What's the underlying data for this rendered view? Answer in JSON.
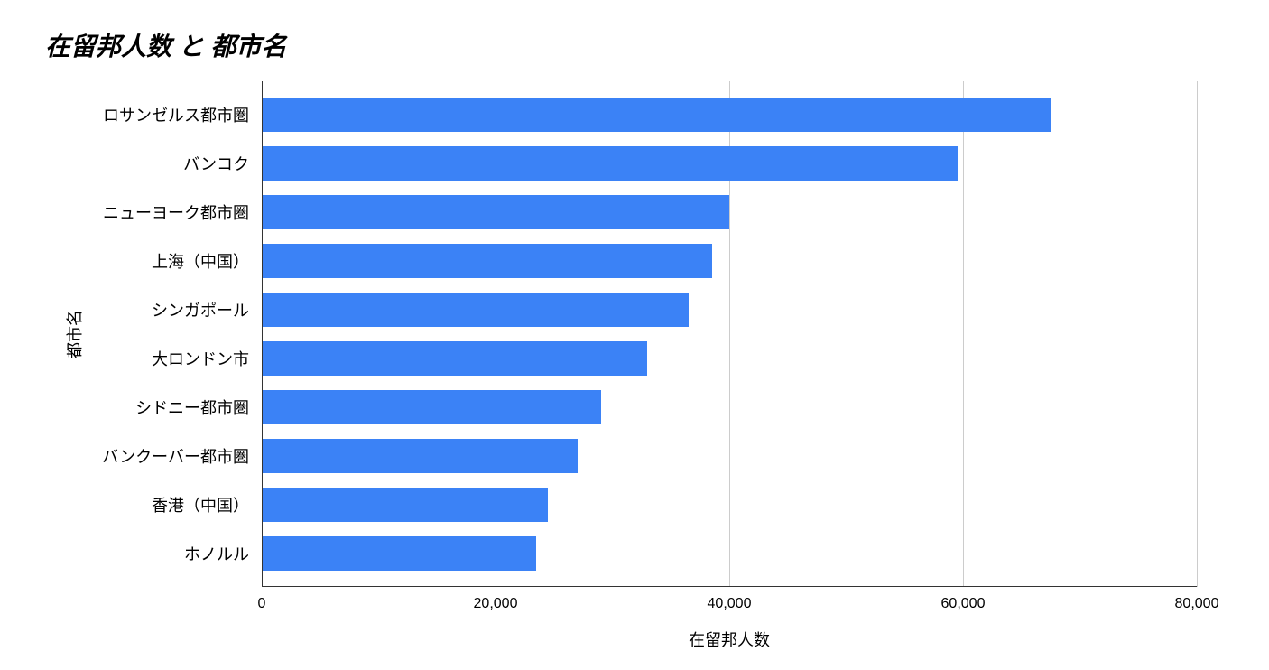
{
  "chart": {
    "type": "bar",
    "orientation": "horizontal",
    "title": "在留邦人数 と 都市名",
    "title_fontsize": 28,
    "title_fontweight": "bold",
    "title_fontstyle": "italic",
    "title_color": "#000000",
    "x_axis": {
      "label": "在留邦人数",
      "label_fontsize": 18,
      "min": 0,
      "max": 80000,
      "tick_step": 20000,
      "ticks": [
        0,
        20000,
        40000,
        60000,
        80000
      ],
      "tick_labels": [
        "0",
        "20,000",
        "40,000",
        "60,000",
        "80,000"
      ],
      "tick_fontsize": 16
    },
    "y_axis": {
      "label": "都市名",
      "label_fontsize": 18,
      "tick_fontsize": 18
    },
    "categories": [
      "ロサンゼルス都市圏",
      "バンコク",
      "ニューヨーク都市圏",
      "上海（中国）",
      "シンガポール",
      "大ロンドン市",
      "シドニー都市圏",
      "バンクーバー都市圏",
      "香港（中国）",
      "ホノルル"
    ],
    "values": [
      67500,
      59500,
      40000,
      38500,
      36500,
      33000,
      29000,
      27000,
      24500,
      23500
    ],
    "bar_color": "#3b82f6",
    "background_color": "#ffffff",
    "grid_color": "#cccccc",
    "axis_color": "#333333"
  }
}
